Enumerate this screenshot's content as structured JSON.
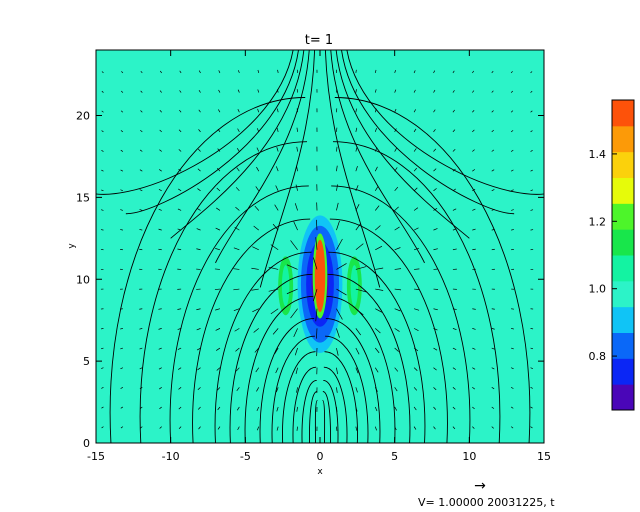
{
  "chart_data": {
    "type": "heatmap",
    "title": "t= 1",
    "xlabel": "x",
    "ylabel": "y",
    "xlim": [
      -15,
      15
    ],
    "ylim": [
      0,
      24
    ],
    "x_ticks": [
      -15,
      -10,
      -5,
      0,
      5,
      10,
      15
    ],
    "y_ticks": [
      0,
      5,
      10,
      15,
      20
    ],
    "grid": false,
    "background_value": 1.0,
    "colorbar": {
      "vmin": 0.64,
      "vmax": 1.56,
      "tick_values": [
        0.8,
        1.0,
        1.2,
        1.4
      ],
      "tick_labels": [
        "0.8",
        "1.0",
        "1.2",
        "1.4"
      ],
      "colors": [
        "#4a06b8",
        "#0b26f5",
        "#0a68f8",
        "#10c4f6",
        "#2cf3c8",
        "#13f3a2",
        "#18e64b",
        "#4df52a",
        "#e6fb0a",
        "#fbd10c",
        "#fc9a08",
        "#fd520a"
      ]
    },
    "features": [
      {
        "name": "central high-density core",
        "x": 0.0,
        "y": 10.2,
        "half_width": 0.35,
        "half_height": 2.6,
        "value": 1.5
      },
      {
        "name": "low-density lobe",
        "x": 0.0,
        "y": 9.7,
        "half_width": 1.5,
        "half_height": 4.2,
        "value": 0.75
      },
      {
        "name": "left enhanced flank",
        "x": -2.3,
        "y": 9.6,
        "half_width": 0.5,
        "half_height": 1.8,
        "value": 1.15
      },
      {
        "name": "right enhanced flank",
        "x": 2.3,
        "y": 9.6,
        "half_width": 0.5,
        "half_height": 1.8,
        "value": 1.15
      }
    ],
    "field_line_footpoints_x": [
      -14,
      -12,
      -10,
      -8.5,
      -7,
      -6,
      -5,
      -4,
      -3.2,
      -2.5,
      -1.8,
      -1.2,
      -0.7,
      -0.3,
      0.3,
      0.7,
      1.2,
      1.8,
      2.5,
      3.2,
      4,
      5,
      6,
      7,
      8.5,
      10,
      12,
      14
    ],
    "vector_legend": {
      "text": "V= 1.00000  20031225, t",
      "arrow": "→"
    }
  }
}
